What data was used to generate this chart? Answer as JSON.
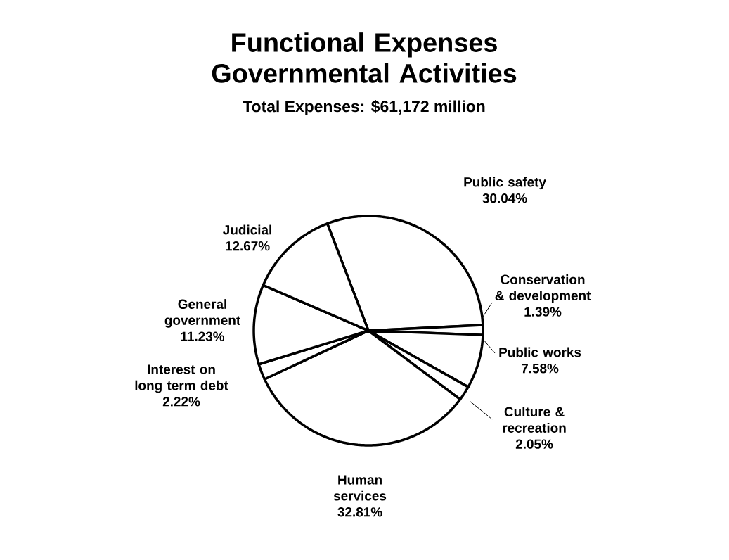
{
  "chart_data": {
    "type": "pie",
    "title": "Functional Expenses Governmental Activities",
    "subtitle": "Total Expenses: $61,172 million",
    "categories": [
      "Public safety",
      "Conservation & development",
      "Public works",
      "Culture & recreation",
      "Human services",
      "Interest on long term debt",
      "General government",
      "Judicial"
    ],
    "values": [
      30.04,
      1.39,
      7.58,
      2.05,
      32.81,
      2.22,
      11.23,
      12.67
    ],
    "colors": [
      "#ffffff",
      "#ffffff",
      "#ffffff",
      "#ffffff",
      "#ffffff",
      "#ffffff",
      "#ffffff",
      "#ffffff"
    ],
    "value_labels": [
      "30.04%",
      "1.39%",
      "7.58%",
      "2.05%",
      "32.81%",
      "2.22%",
      "11.23%",
      "12.67%"
    ]
  }
}
